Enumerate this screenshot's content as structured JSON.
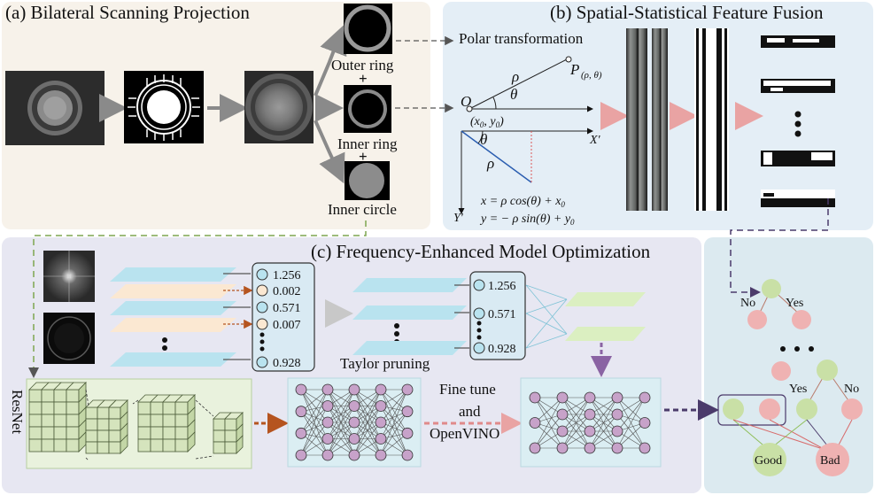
{
  "panels": {
    "a_title": "(a) Bilateral Scanning Projection",
    "b_title": "(b) Spatial-Statistical Feature Fusion",
    "c_title": "(c) Frequency-Enhanced Model Optimization"
  },
  "panel_a": {
    "outer_ring": "Outer ring",
    "inner_ring": "Inner ring",
    "inner_circle": "Inner circle",
    "plus": "+"
  },
  "panel_b": {
    "polar_title": "Polar transformation",
    "origin": "O",
    "origin_coord": "(x",
    "point": "P",
    "point_sub": "(ρ, θ)",
    "rho": "ρ",
    "theta": "θ",
    "x_axis": "X'",
    "y_axis": "Y'",
    "eq1": "x = ρ cos(θ) + x",
    "eq2": "y = − ρ sin(θ) + y"
  },
  "panel_c": {
    "weights_full": [
      "1.256",
      "0.002",
      "0.571",
      "0.007",
      "0.928"
    ],
    "weights_pruned": [
      "1.256",
      "0.571",
      "0.928"
    ],
    "taylor": "Taylor pruning",
    "fine_tune_1": "Fine tune",
    "fine_tune_2": "and",
    "fine_tune_3": "OpenVINO",
    "resnet": "ResNet"
  },
  "panel_d": {
    "no": "No",
    "yes": "Yes",
    "good": "Good",
    "bad": "Bad"
  },
  "colors": {
    "panel_a_bg": "#f7f2ea",
    "panel_b_bg": "#e4eef6",
    "panel_c_bg": "#e7e7f2",
    "panel_d_bg": "#dceaf0",
    "layer_blue": "#b9e3ef",
    "layer_peach": "#fbe8d2",
    "node_purple": "#c7a2c9",
    "node_green": "#c9e0a6",
    "node_pink": "#efb2b2",
    "cube_green": "#d5e4bd"
  }
}
